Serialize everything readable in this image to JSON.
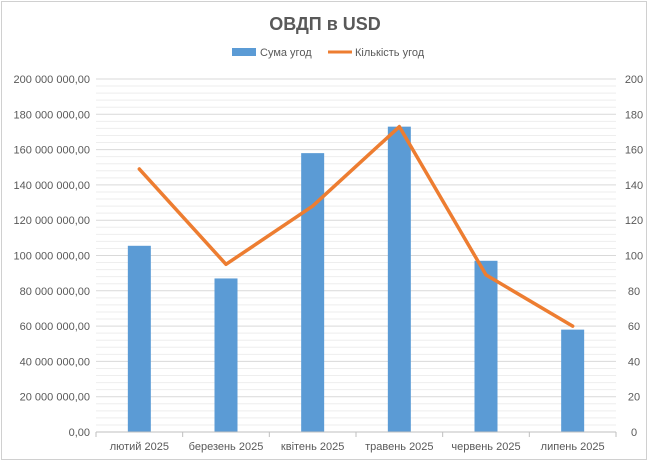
{
  "chart_data": {
    "type": "bar+line",
    "title": "ОВДП в USD",
    "categories": [
      "лютий 2025",
      "березень 2025",
      "квітень 2025",
      "травень 2025",
      "червень 2025",
      "липень 2025"
    ],
    "series": [
      {
        "name": "Сума угод",
        "type": "bar",
        "axis": "left",
        "color": "#5b9bd5",
        "values": [
          105500000,
          87000000,
          158000000,
          173000000,
          97000000,
          58000000
        ]
      },
      {
        "name": "Кількість угод",
        "type": "line",
        "axis": "right",
        "color": "#ed7d31",
        "values": [
          149,
          95,
          128,
          173,
          89,
          60
        ]
      }
    ],
    "y_left": {
      "min": 0,
      "max": 200000000,
      "step": 20000000,
      "tick_labels": [
        "0,00",
        "20 000 000,00",
        "40 000 000,00",
        "60 000 000,00",
        "80 000 000,00",
        "100 000 000,00",
        "120 000 000,00",
        "140 000 000,00",
        "160 000 000,00",
        "180 000 000,00",
        "200 000 000,00"
      ]
    },
    "y_right": {
      "min": 0,
      "max": 200,
      "step": 20,
      "tick_labels": [
        "0",
        "20",
        "40",
        "60",
        "80",
        "100",
        "120",
        "140",
        "160",
        "180",
        "200"
      ]
    },
    "grid": true,
    "legend_position": "top"
  }
}
